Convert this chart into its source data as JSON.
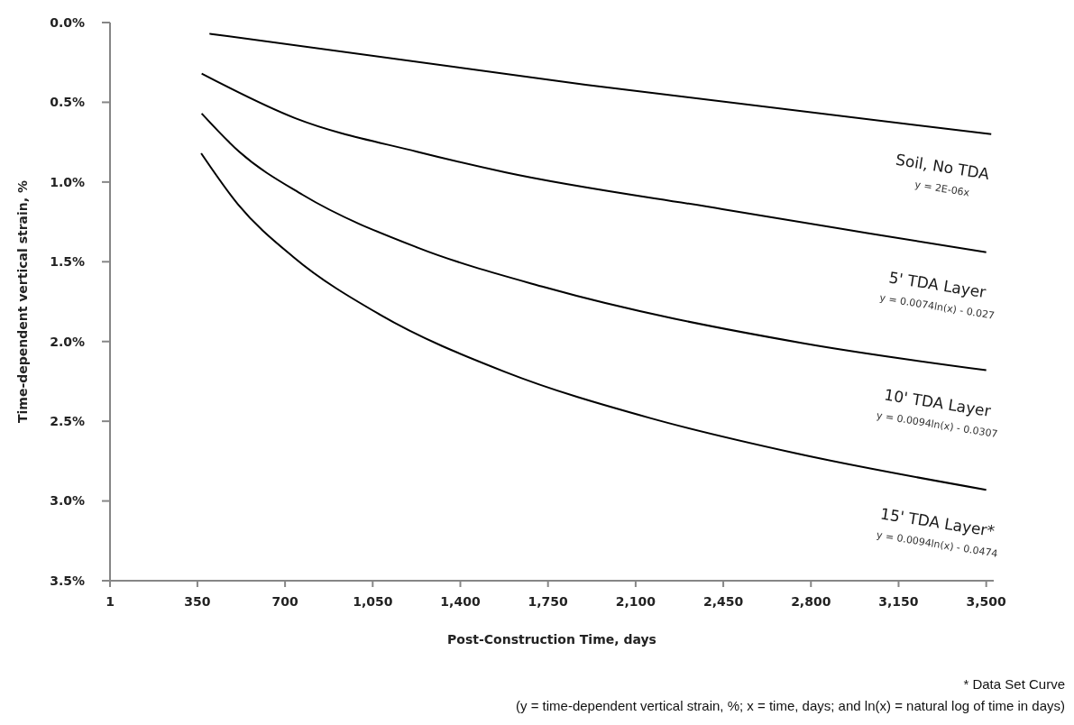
{
  "chart_data": {
    "type": "line",
    "xlabel": "Post-Construction Time, days",
    "ylabel": "Time-dependent vertical strain, %",
    "xlim": [
      1,
      3530
    ],
    "ylim": [
      3.5,
      0
    ],
    "xticks": [
      1,
      350,
      700,
      {
        "value": 1050,
        "label": "1,050"
      },
      {
        "value": 1400,
        "label": "1,400"
      },
      {
        "value": 1750,
        "label": "1,750"
      },
      {
        "value": 2100,
        "label": "2,100"
      },
      {
        "value": 2450,
        "label": "2,450"
      },
      {
        "value": 2800,
        "label": "2,800"
      },
      {
        "value": 3150,
        "label": "3,150"
      },
      {
        "value": 3500,
        "label": "3,500"
      }
    ],
    "yticks": [
      {
        "value": 0,
        "label": "0.0%"
      },
      {
        "value": 0.5,
        "label": "0.5%"
      },
      {
        "value": 1,
        "label": "1.0%"
      },
      {
        "value": 1.5,
        "label": "1.5%"
      },
      {
        "value": 2,
        "label": "2.0%"
      },
      {
        "value": 2.5,
        "label": "2.5%"
      },
      {
        "value": 3,
        "label": "3.0%"
      },
      {
        "value": 3.5,
        "label": "3.5%"
      }
    ],
    "series": [
      {
        "name": "Soil, No TDA",
        "color": "#000000",
        "x": [
          398,
          1900,
          3520
        ],
        "values": [
          0.07,
          0.39,
          0.7
        ]
      },
      {
        "name": "5' TDA Layer",
        "color": "#000000",
        "x": [
          367,
          741,
          1227,
          1582,
          2447,
          3025,
          3500
        ],
        "values": [
          0.32,
          0.6,
          0.81,
          0.94,
          1.17,
          1.32,
          1.44
        ]
      },
      {
        "name": "10' TDA Layer",
        "color": "#000000",
        "x": [
          367,
          517,
          770,
          1227,
          1737,
          2766,
          3500
        ],
        "values": [
          0.57,
          0.81,
          1.08,
          1.41,
          1.66,
          2.01,
          2.18
        ]
      },
      {
        "name": "15' TDA Layer*",
        "color": "#000000",
        "x": [
          365,
          512,
          733,
          1077,
          1578,
          2158,
          2737,
          3500
        ],
        "values": [
          0.82,
          1.14,
          1.47,
          1.83,
          2.19,
          2.48,
          2.7,
          2.93
        ]
      }
    ],
    "annotations": [
      "y = 2E-06x",
      "y = 0.0074ln(x) - 0.027",
      "y = 0.0094ln(x) - 0.0307",
      "y = 0.0094ln(x) - 0.0474",
      "* Data Set Curve",
      "(y = time-dependent vertical strain, %; x = time, days; and ln(x) = natural log of time in days)"
    ]
  }
}
